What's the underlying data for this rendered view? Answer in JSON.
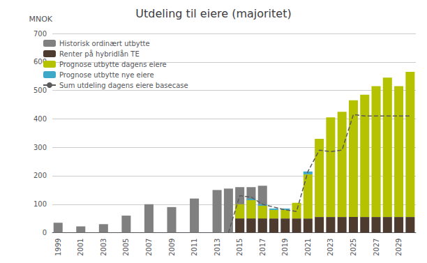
{
  "chart_data": {
    "type": "bar",
    "title": "Utdeling til eiere (majoritet)",
    "y_label": "MNOK",
    "categories": [
      "1999",
      null,
      "2001",
      null,
      "2003",
      null,
      "2005",
      null,
      "2007",
      null,
      "2009",
      null,
      "2011",
      null,
      "2013",
      null,
      "2015",
      null,
      "2017",
      null,
      "2019",
      null,
      "2021",
      null,
      "2023",
      null,
      "2025",
      null,
      "2027",
      null,
      "2029",
      null
    ],
    "series": [
      {
        "name": "Historisk ordinært utbytte",
        "type": "bar",
        "stacked": false,
        "color": "#808080",
        "values": [
          35,
          0,
          22,
          0,
          30,
          0,
          60,
          0,
          100,
          0,
          90,
          0,
          120,
          0,
          150,
          155,
          160,
          160,
          165,
          0,
          0,
          0,
          0,
          0,
          0,
          0,
          0,
          0,
          0,
          0,
          0,
          0
        ]
      },
      {
        "name": "Renter på hybridlån TE",
        "type": "bar",
        "color": "#4d3b30",
        "values": [
          0,
          0,
          0,
          0,
          0,
          0,
          0,
          0,
          0,
          0,
          0,
          0,
          0,
          0,
          0,
          0,
          50,
          50,
          50,
          50,
          50,
          50,
          50,
          55,
          55,
          55,
          55,
          55,
          55,
          55,
          55,
          55
        ]
      },
      {
        "name": "Prognose utbytte dagens eiere",
        "type": "bar",
        "color": "#b5c200",
        "values": [
          0,
          0,
          0,
          0,
          0,
          0,
          0,
          0,
          0,
          0,
          0,
          0,
          0,
          0,
          0,
          0,
          50,
          65,
          45,
          30,
          30,
          55,
          155,
          275,
          350,
          370,
          410,
          430,
          460,
          490,
          460,
          510
        ]
      },
      {
        "name": "Prognose utbytte nye eiere",
        "type": "bar",
        "color": "#3ea8c8",
        "values": [
          0,
          0,
          0,
          0,
          0,
          0,
          0,
          0,
          0,
          0,
          0,
          0,
          0,
          0,
          0,
          0,
          0,
          5,
          5,
          5,
          5,
          0,
          10,
          0,
          0,
          0,
          0,
          0,
          0,
          0,
          0,
          0
        ]
      },
      {
        "name": "Sum utdeling dagens eiere basecase",
        "type": "line",
        "line_style": "dashed",
        "color": "#5a5a5a",
        "values": [
          null,
          null,
          null,
          null,
          null,
          null,
          null,
          null,
          null,
          null,
          null,
          null,
          null,
          null,
          null,
          0,
          130,
          125,
          100,
          90,
          80,
          75,
          215,
          290,
          285,
          290,
          415,
          410,
          410,
          410,
          410,
          410
        ]
      }
    ],
    "stacked": true,
    "ylim": [
      0,
      700
    ],
    "yticks": [
      0,
      100,
      200,
      300,
      400,
      500,
      600,
      700
    ],
    "grid": true,
    "legend": "upper left"
  }
}
